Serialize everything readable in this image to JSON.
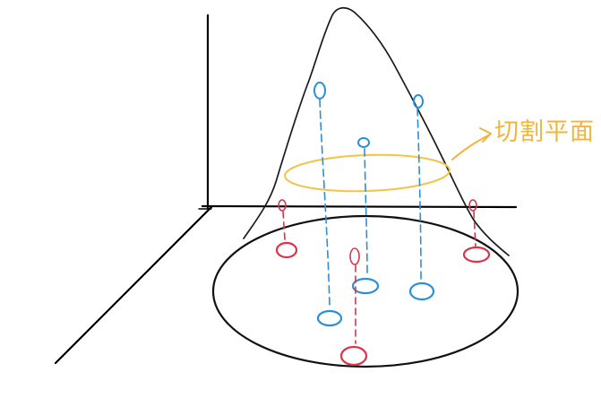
{
  "annotation": {
    "label": "切割平面"
  },
  "colors": {
    "axis": "#000000",
    "outline": "#1a1a1a",
    "plane": "#f3c44a",
    "upper_points": "#2b8fd8",
    "lower_points": "#d8344a"
  }
}
